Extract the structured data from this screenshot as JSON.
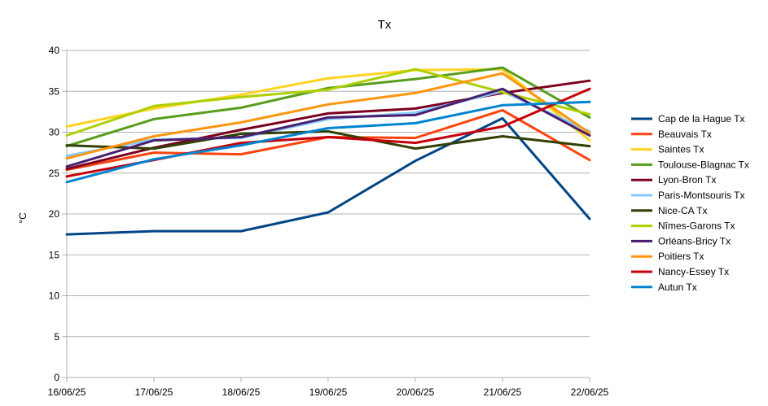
{
  "chart_data": {
    "type": "line",
    "title": "Tx",
    "xlabel": "",
    "ylabel": "°C",
    "ylim": [
      0,
      40
    ],
    "yticks": [
      0,
      5,
      10,
      15,
      20,
      25,
      30,
      35,
      40
    ],
    "categories": [
      "16/06/25",
      "17/06/25",
      "18/06/25",
      "19/06/25",
      "20/06/25",
      "21/06/25",
      "22/06/25"
    ],
    "grid": "horizontal",
    "legend_position": "right",
    "series": [
      {
        "name": "Cap de la Hague Tx",
        "color": "#004586",
        "values": [
          17.5,
          17.9,
          17.9,
          20.2,
          26.5,
          31.7,
          19.4
        ]
      },
      {
        "name": "Beauvais Tx",
        "color": "#ff420e",
        "values": [
          25.4,
          27.5,
          27.3,
          29.4,
          29.3,
          32.7,
          26.6
        ]
      },
      {
        "name": "Saintes Tx",
        "color": "#ffd320",
        "values": [
          30.7,
          32.9,
          34.6,
          36.6,
          37.6,
          37.7,
          29.0
        ]
      },
      {
        "name": "Toulouse-Blagnac Tx",
        "color": "#579d1c",
        "values": [
          28.3,
          31.6,
          33.0,
          35.4,
          36.5,
          37.9,
          31.8
        ]
      },
      {
        "name": "Lyon-Bron Tx",
        "color": "#7e0021",
        "values": [
          25.5,
          28.1,
          30.3,
          32.3,
          32.9,
          34.8,
          36.3
        ]
      },
      {
        "name": "Paris-Montsouris Tx",
        "color": "#83caff",
        "values": [
          27.1,
          29.1,
          29.3,
          31.6,
          32.4,
          35.0,
          30.1
        ]
      },
      {
        "name": "Nice-CA Tx",
        "color": "#314004",
        "values": [
          28.4,
          28.0,
          29.8,
          30.1,
          28.0,
          29.5,
          28.3
        ]
      },
      {
        "name": "Nîmes-Garons Tx",
        "color": "#aecf00",
        "values": [
          29.6,
          33.2,
          34.3,
          35.2,
          37.7,
          34.9,
          32.2
        ]
      },
      {
        "name": "Orléans-Bricy Tx",
        "color": "#4b1f6f",
        "values": [
          25.8,
          29.0,
          29.4,
          31.8,
          32.1,
          35.3,
          29.6
        ]
      },
      {
        "name": "Poitiers Tx",
        "color": "#ff950e",
        "values": [
          26.8,
          29.5,
          31.2,
          33.4,
          34.8,
          37.2,
          29.9
        ]
      },
      {
        "name": "Nancy-Essey Tx",
        "color": "#c5000b",
        "values": [
          24.6,
          26.6,
          28.7,
          29.4,
          28.7,
          30.7,
          35.3
        ]
      },
      {
        "name": "Autun Tx",
        "color": "#0084d1",
        "values": [
          23.9,
          26.7,
          28.4,
          30.5,
          31.1,
          33.3,
          33.7
        ]
      }
    ]
  }
}
